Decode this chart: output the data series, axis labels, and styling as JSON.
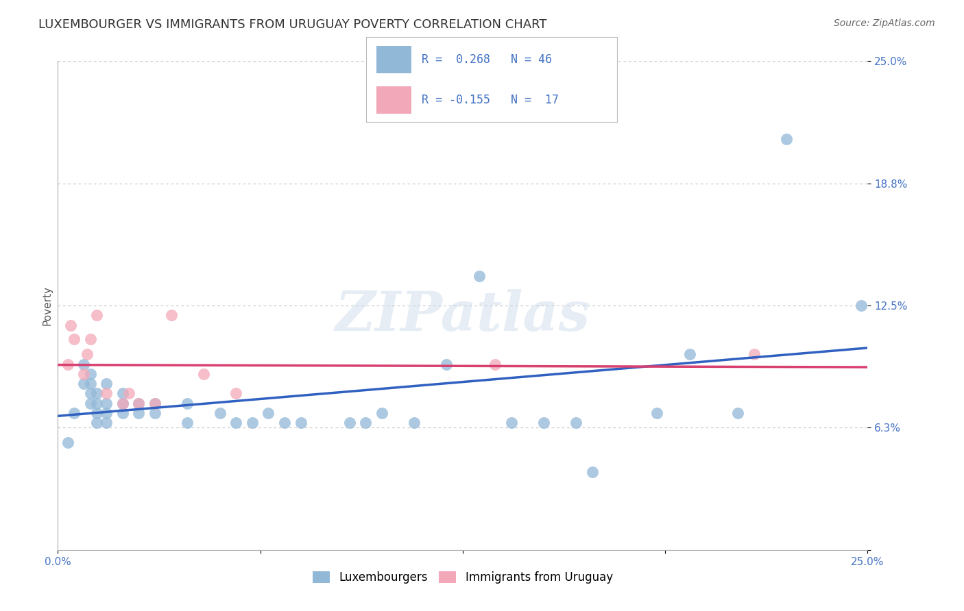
{
  "title": "LUXEMBOURGER VS IMMIGRANTS FROM URUGUAY POVERTY CORRELATION CHART",
  "source": "Source: ZipAtlas.com",
  "ylabel": "Poverty",
  "xlim": [
    0.0,
    0.25
  ],
  "ylim": [
    0.0,
    0.25
  ],
  "legend_r1": "R =  0.268",
  "legend_n1": "N = 46",
  "legend_r2": "R = -0.155",
  "legend_n2": "N =  17",
  "blue_color": "#92b8d8",
  "pink_color": "#f2a8b8",
  "blue_line_color": "#3060c0",
  "pink_line_color": "#d84070",
  "blue_scatter": [
    [
      0.005,
      0.07
    ],
    [
      0.008,
      0.095
    ],
    [
      0.008,
      0.085
    ],
    [
      0.01,
      0.09
    ],
    [
      0.01,
      0.085
    ],
    [
      0.01,
      0.08
    ],
    [
      0.01,
      0.075
    ],
    [
      0.012,
      0.08
    ],
    [
      0.012,
      0.075
    ],
    [
      0.012,
      0.07
    ],
    [
      0.012,
      0.065
    ],
    [
      0.015,
      0.085
    ],
    [
      0.015,
      0.075
    ],
    [
      0.015,
      0.07
    ],
    [
      0.015,
      0.065
    ],
    [
      0.02,
      0.08
    ],
    [
      0.02,
      0.075
    ],
    [
      0.02,
      0.07
    ],
    [
      0.025,
      0.075
    ],
    [
      0.025,
      0.07
    ],
    [
      0.03,
      0.075
    ],
    [
      0.03,
      0.07
    ],
    [
      0.04,
      0.075
    ],
    [
      0.04,
      0.065
    ],
    [
      0.05,
      0.07
    ],
    [
      0.055,
      0.065
    ],
    [
      0.06,
      0.065
    ],
    [
      0.065,
      0.07
    ],
    [
      0.07,
      0.065
    ],
    [
      0.075,
      0.065
    ],
    [
      0.09,
      0.065
    ],
    [
      0.095,
      0.065
    ],
    [
      0.1,
      0.07
    ],
    [
      0.11,
      0.065
    ],
    [
      0.12,
      0.095
    ],
    [
      0.13,
      0.14
    ],
    [
      0.14,
      0.065
    ],
    [
      0.15,
      0.065
    ],
    [
      0.16,
      0.065
    ],
    [
      0.165,
      0.04
    ],
    [
      0.185,
      0.07
    ],
    [
      0.195,
      0.1
    ],
    [
      0.21,
      0.07
    ],
    [
      0.225,
      0.21
    ],
    [
      0.248,
      0.125
    ],
    [
      0.003,
      0.055
    ]
  ],
  "pink_scatter": [
    [
      0.003,
      0.095
    ],
    [
      0.004,
      0.115
    ],
    [
      0.005,
      0.108
    ],
    [
      0.008,
      0.09
    ],
    [
      0.009,
      0.1
    ],
    [
      0.01,
      0.108
    ],
    [
      0.012,
      0.12
    ],
    [
      0.015,
      0.08
    ],
    [
      0.02,
      0.075
    ],
    [
      0.022,
      0.08
    ],
    [
      0.025,
      0.075
    ],
    [
      0.03,
      0.075
    ],
    [
      0.035,
      0.12
    ],
    [
      0.045,
      0.09
    ],
    [
      0.055,
      0.08
    ],
    [
      0.135,
      0.095
    ],
    [
      0.215,
      0.1
    ]
  ],
  "background_color": "#ffffff",
  "grid_color": "#cccccc",
  "title_fontsize": 13,
  "tick_fontsize": 11,
  "watermark_text": "ZIPatlas"
}
